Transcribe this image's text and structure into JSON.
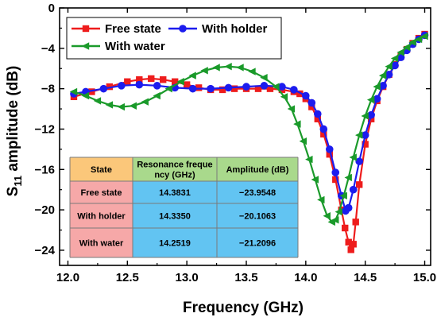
{
  "chart_data": {
    "type": "line",
    "xlabel": "Frequency (GHz)",
    "ylabel": "S11 amplitude (dB)",
    "ylabel_parts": {
      "main": "S",
      "sub": "11",
      "rest": " amplitude (dB)"
    },
    "xlim": [
      11.93,
      15.05
    ],
    "ylim": [
      -25.5,
      0
    ],
    "xticks": [
      12.0,
      12.5,
      13.0,
      13.5,
      14.0,
      14.5,
      15.0
    ],
    "xtick_labels": [
      "12.0",
      "12.5",
      "13.0",
      "13.5",
      "14.0",
      "14.5",
      "15.0"
    ],
    "yticks": [
      0,
      -4,
      -8,
      -12,
      -16,
      -20,
      -24
    ],
    "ytick_labels": [
      "0",
      "−4",
      "−8",
      "−12",
      "−16",
      "−20",
      "−24"
    ],
    "legend_placement": "top-left",
    "grid": false,
    "series": [
      {
        "name": "Free state",
        "color": "#ee1c1c",
        "marker": "square",
        "x": [
          12.05,
          12.2,
          12.35,
          12.5,
          12.6,
          12.7,
          12.8,
          12.9,
          13.0,
          13.1,
          13.2,
          13.3,
          13.4,
          13.5,
          13.6,
          13.7,
          13.8,
          13.9,
          13.95,
          14.0,
          14.05,
          14.1,
          14.15,
          14.2,
          14.25,
          14.3,
          14.33,
          14.36,
          14.38,
          14.4,
          14.42,
          14.45,
          14.5,
          14.55,
          14.6,
          14.65,
          14.7,
          14.75,
          14.8,
          14.85,
          14.9,
          14.95,
          15.0
        ],
        "y": [
          -8.8,
          -8.3,
          -7.8,
          -7.3,
          -7.1,
          -7.0,
          -7.1,
          -7.3,
          -7.6,
          -7.9,
          -8.1,
          -8.1,
          -8.0,
          -8.0,
          -8.0,
          -8.0,
          -8.1,
          -8.3,
          -8.5,
          -9.0,
          -9.8,
          -11.0,
          -12.5,
          -14.5,
          -17.0,
          -20.0,
          -21.8,
          -23.2,
          -23.95,
          -23.4,
          -21.2,
          -17.5,
          -13.5,
          -11.0,
          -9.2,
          -7.8,
          -6.6,
          -5.6,
          -4.8,
          -4.1,
          -3.5,
          -3.0,
          -2.6
        ]
      },
      {
        "name": "With holder",
        "color": "#1c1cee",
        "marker": "circle",
        "x": [
          12.05,
          12.15,
          12.3,
          12.45,
          12.6,
          12.75,
          12.9,
          13.05,
          13.2,
          13.35,
          13.5,
          13.65,
          13.8,
          13.9,
          14.0,
          14.05,
          14.1,
          14.15,
          14.2,
          14.25,
          14.3,
          14.335,
          14.36,
          14.4,
          14.45,
          14.5,
          14.55,
          14.6,
          14.65,
          14.7,
          14.75,
          14.8,
          14.85,
          14.9,
          14.95,
          15.0
        ],
        "y": [
          -8.5,
          -8.3,
          -8.0,
          -7.7,
          -7.6,
          -7.7,
          -7.9,
          -8.0,
          -8.0,
          -7.9,
          -7.8,
          -7.7,
          -7.8,
          -8.1,
          -8.7,
          -9.4,
          -10.5,
          -12.0,
          -14.0,
          -16.3,
          -18.6,
          -20.1,
          -19.8,
          -18.0,
          -15.2,
          -12.6,
          -10.6,
          -9.0,
          -7.7,
          -6.6,
          -5.7,
          -4.9,
          -4.2,
          -3.6,
          -3.1,
          -2.7
        ]
      },
      {
        "name": "With water",
        "color": "#1a9a2a",
        "marker": "triangle-left",
        "x": [
          12.05,
          12.15,
          12.25,
          12.35,
          12.45,
          12.55,
          12.65,
          12.75,
          12.85,
          12.95,
          13.05,
          13.15,
          13.25,
          13.35,
          13.45,
          13.55,
          13.65,
          13.75,
          13.82,
          13.88,
          13.93,
          13.98,
          14.03,
          14.08,
          14.13,
          14.18,
          14.22,
          14.25,
          14.28,
          14.32,
          14.36,
          14.4,
          14.45,
          14.5,
          14.55,
          14.6,
          14.65,
          14.7,
          14.75,
          14.8,
          14.85,
          14.9,
          14.95,
          15.0
        ],
        "y": [
          -8.3,
          -8.7,
          -9.2,
          -9.6,
          -9.8,
          -9.7,
          -9.3,
          -8.7,
          -8.0,
          -7.3,
          -6.7,
          -6.2,
          -5.9,
          -5.8,
          -5.9,
          -6.3,
          -6.9,
          -7.8,
          -8.8,
          -10.0,
          -11.5,
          -13.2,
          -15.0,
          -17.0,
          -19.0,
          -20.6,
          -21.2,
          -21.0,
          -20.2,
          -18.6,
          -16.8,
          -14.8,
          -12.6,
          -10.7,
          -9.1,
          -7.8,
          -6.7,
          -5.8,
          -5.0,
          -4.4,
          -3.9,
          -3.4,
          -3.1,
          -2.8
        ]
      }
    ],
    "table": {
      "headers": [
        "State",
        "Resonance freque ncy (GHz)",
        "Amplitude (dB)"
      ],
      "header_lines": [
        [
          "State"
        ],
        [
          "Resonance freque",
          "ncy (GHz)"
        ],
        [
          "Amplitude (dB)"
        ]
      ],
      "rows": [
        [
          "Free state",
          "14.3831",
          "−23.9548"
        ],
        [
          "With holder",
          "14.3350",
          "−20.1063"
        ],
        [
          "With water",
          "14.2519",
          "−21.2096"
        ]
      ],
      "colors": {
        "header_state": "#fbc77a",
        "header_other": "#a9d98c",
        "row_label": "#f6a8a8",
        "row_values": "#62c4f2"
      }
    }
  }
}
